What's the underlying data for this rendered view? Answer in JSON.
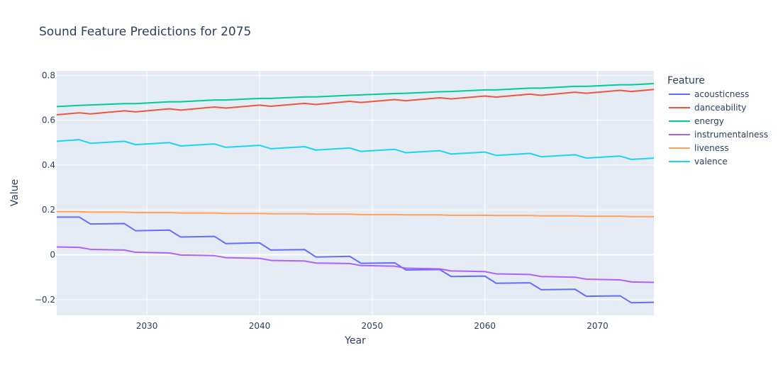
{
  "chart_data": {
    "type": "line",
    "title": "Sound Feature Predictions for 2075",
    "xlabel": "Year",
    "ylabel": "Value",
    "legend_title": "Feature",
    "legend_position": "right",
    "grid": true,
    "xlim": [
      2022,
      2075
    ],
    "ylim": [
      -0.27,
      0.82
    ],
    "x_ticks": [
      2030,
      2040,
      2050,
      2060,
      2070
    ],
    "y_ticks": [
      -0.2,
      0,
      0.2,
      0.4,
      0.6,
      0.8
    ],
    "x_tick_labels": [
      "2030",
      "2040",
      "2050",
      "2060",
      "2070"
    ],
    "y_tick_labels": [
      "−0.2",
      "0",
      "0.2",
      "0.4",
      "0.6",
      "0.8"
    ],
    "series": [
      {
        "name": "acousticness",
        "color": "#636efa",
        "x": [
          2022,
          2024,
          2025,
          2028,
          2029,
          2032,
          2033,
          2036,
          2037,
          2040,
          2041,
          2044,
          2045,
          2048,
          2049,
          2052,
          2053,
          2056,
          2057,
          2060,
          2061,
          2064,
          2065,
          2068,
          2069,
          2072,
          2073,
          2075
        ],
        "y": [
          0.168,
          0.168,
          0.137,
          0.139,
          0.107,
          0.11,
          0.079,
          0.082,
          0.05,
          0.053,
          0.021,
          0.023,
          -0.01,
          -0.007,
          -0.038,
          -0.036,
          -0.068,
          -0.066,
          -0.097,
          -0.095,
          -0.127,
          -0.125,
          -0.156,
          -0.154,
          -0.185,
          -0.183,
          -0.214,
          -0.212
        ]
      },
      {
        "name": "danceability",
        "color": "#ef553b",
        "x": [
          2022,
          2024,
          2025,
          2028,
          2029,
          2032,
          2033,
          2036,
          2037,
          2040,
          2041,
          2044,
          2045,
          2048,
          2049,
          2052,
          2053,
          2056,
          2057,
          2060,
          2061,
          2064,
          2065,
          2068,
          2069,
          2072,
          2073,
          2075
        ],
        "y": [
          0.624,
          0.633,
          0.628,
          0.642,
          0.637,
          0.651,
          0.645,
          0.659,
          0.654,
          0.667,
          0.662,
          0.675,
          0.67,
          0.684,
          0.679,
          0.692,
          0.687,
          0.7,
          0.695,
          0.708,
          0.703,
          0.716,
          0.711,
          0.725,
          0.72,
          0.733,
          0.728,
          0.737
        ]
      },
      {
        "name": "energy",
        "color": "#00cc96",
        "x": [
          2022,
          2024,
          2025,
          2028,
          2029,
          2032,
          2033,
          2036,
          2037,
          2040,
          2041,
          2044,
          2045,
          2048,
          2049,
          2052,
          2053,
          2056,
          2057,
          2060,
          2061,
          2064,
          2065,
          2068,
          2069,
          2072,
          2073,
          2075
        ],
        "y": [
          0.661,
          0.666,
          0.668,
          0.674,
          0.674,
          0.682,
          0.682,
          0.69,
          0.69,
          0.697,
          0.697,
          0.704,
          0.704,
          0.711,
          0.713,
          0.719,
          0.72,
          0.727,
          0.728,
          0.735,
          0.735,
          0.743,
          0.743,
          0.751,
          0.751,
          0.758,
          0.758,
          0.763
        ]
      },
      {
        "name": "instrumentalness",
        "color": "#ab63fa",
        "x": [
          2022,
          2024,
          2025,
          2028,
          2029,
          2032,
          2033,
          2036,
          2037,
          2040,
          2041,
          2044,
          2045,
          2048,
          2049,
          2052,
          2053,
          2056,
          2057,
          2060,
          2061,
          2064,
          2065,
          2068,
          2069,
          2072,
          2073,
          2075
        ],
        "y": [
          0.035,
          0.033,
          0.024,
          0.021,
          0.011,
          0.008,
          -0.001,
          -0.004,
          -0.013,
          -0.016,
          -0.025,
          -0.028,
          -0.037,
          -0.039,
          -0.048,
          -0.051,
          -0.06,
          -0.063,
          -0.072,
          -0.075,
          -0.085,
          -0.088,
          -0.097,
          -0.1,
          -0.109,
          -0.112,
          -0.121,
          -0.123
        ]
      },
      {
        "name": "liveness",
        "color": "#ffa15a",
        "x": [
          2022,
          2024,
          2025,
          2028,
          2029,
          2032,
          2033,
          2036,
          2037,
          2040,
          2041,
          2044,
          2045,
          2048,
          2049,
          2052,
          2053,
          2056,
          2057,
          2060,
          2061,
          2064,
          2065,
          2068,
          2069,
          2072,
          2073,
          2075
        ],
        "y": [
          0.192,
          0.192,
          0.19,
          0.19,
          0.188,
          0.188,
          0.186,
          0.186,
          0.184,
          0.184,
          0.183,
          0.183,
          0.181,
          0.181,
          0.179,
          0.179,
          0.178,
          0.178,
          0.176,
          0.176,
          0.175,
          0.175,
          0.173,
          0.173,
          0.172,
          0.172,
          0.17,
          0.17
        ]
      },
      {
        "name": "valence",
        "color": "#19d3f3",
        "x": [
          2022,
          2024,
          2025,
          2028,
          2029,
          2032,
          2033,
          2036,
          2037,
          2040,
          2041,
          2044,
          2045,
          2048,
          2049,
          2052,
          2053,
          2056,
          2057,
          2060,
          2061,
          2064,
          2065,
          2068,
          2069,
          2072,
          2073,
          2075
        ],
        "y": [
          0.506,
          0.513,
          0.497,
          0.506,
          0.491,
          0.5,
          0.485,
          0.494,
          0.479,
          0.488,
          0.473,
          0.482,
          0.467,
          0.476,
          0.461,
          0.47,
          0.455,
          0.464,
          0.449,
          0.458,
          0.443,
          0.452,
          0.437,
          0.446,
          0.431,
          0.44,
          0.425,
          0.431
        ]
      }
    ]
  }
}
